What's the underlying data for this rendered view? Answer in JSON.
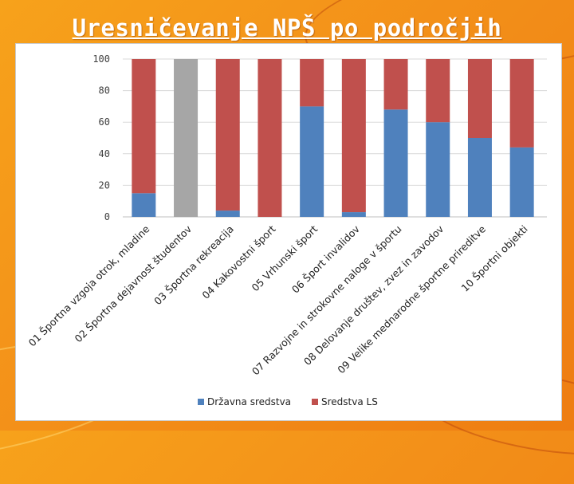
{
  "slide": {
    "title": "Uresničevanje NPŠ po področjih"
  },
  "colors": {
    "background": "#f39019",
    "state_series": "#4f81bd",
    "ls_series": "#c0504d",
    "gray_bar": "#a6a6a6",
    "grid": "#d9d9d9"
  },
  "chart_data": {
    "type": "bar",
    "stacked": true,
    "title": "",
    "xlabel": "",
    "ylabel": "",
    "ylim": [
      0,
      100
    ],
    "yticks": [
      0,
      20,
      40,
      60,
      80,
      100
    ],
    "grid": true,
    "legend_position": "bottom",
    "categories": [
      "01 Športna vzgoja otrok, mladine",
      "02 Športna dejavnost študentov",
      "03 Športna rekreacija",
      "04 Kakovostni šport",
      "05 Vrhunski šport",
      "06 Šport invalidov",
      "07 Razvojne in strokovne naloge v športu",
      "08 Delovanje društev, zvez in zavodov",
      "09 Velike mednarodne športne prireditve",
      "10 Športni objekti"
    ],
    "series": [
      {
        "name": "Državna sredstva",
        "values": [
          15,
          100,
          4,
          0,
          70,
          3,
          68,
          60,
          50,
          44
        ]
      },
      {
        "name": "Sredstva LS",
        "values": [
          85,
          0,
          96,
          100,
          30,
          97,
          32,
          40,
          50,
          56
        ]
      }
    ],
    "special_bar": {
      "category_index": 1,
      "color_name": "gray"
    }
  }
}
